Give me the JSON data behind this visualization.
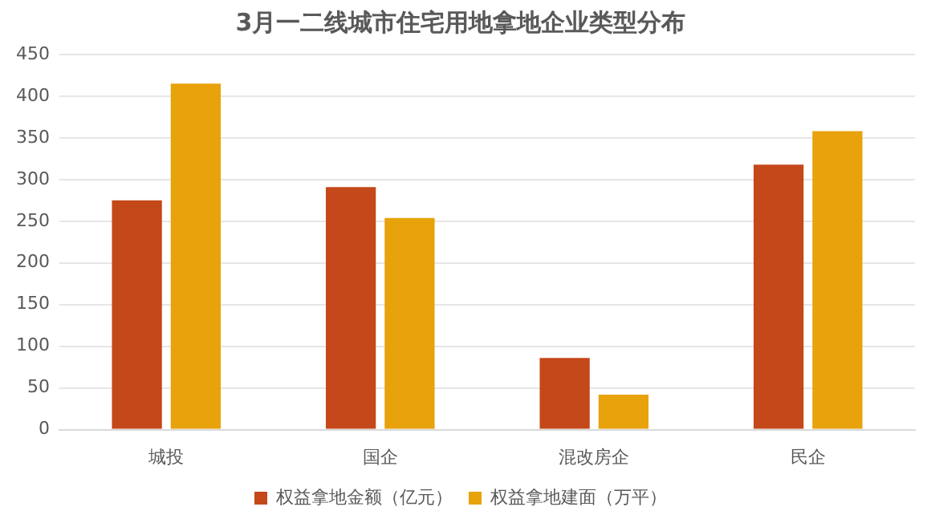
{
  "chart_data": {
    "type": "bar",
    "title": "3月一二线城市住宅用地拿地企业类型分布",
    "categories": [
      "城投",
      "国企",
      "混改房企",
      "民企"
    ],
    "series": [
      {
        "name": "权益拿地金额（亿元）",
        "color": "#c4481a",
        "values": [
          275,
          291,
          86,
          318
        ]
      },
      {
        "name": "权益拿地建面（万平）",
        "color": "#e8a20c",
        "values": [
          415,
          254,
          42,
          358
        ]
      }
    ],
    "ylim": [
      0,
      450
    ],
    "yticks": [
      0,
      50,
      100,
      150,
      200,
      250,
      300,
      350,
      400,
      450
    ],
    "grid": "y",
    "legend": "bottom"
  }
}
